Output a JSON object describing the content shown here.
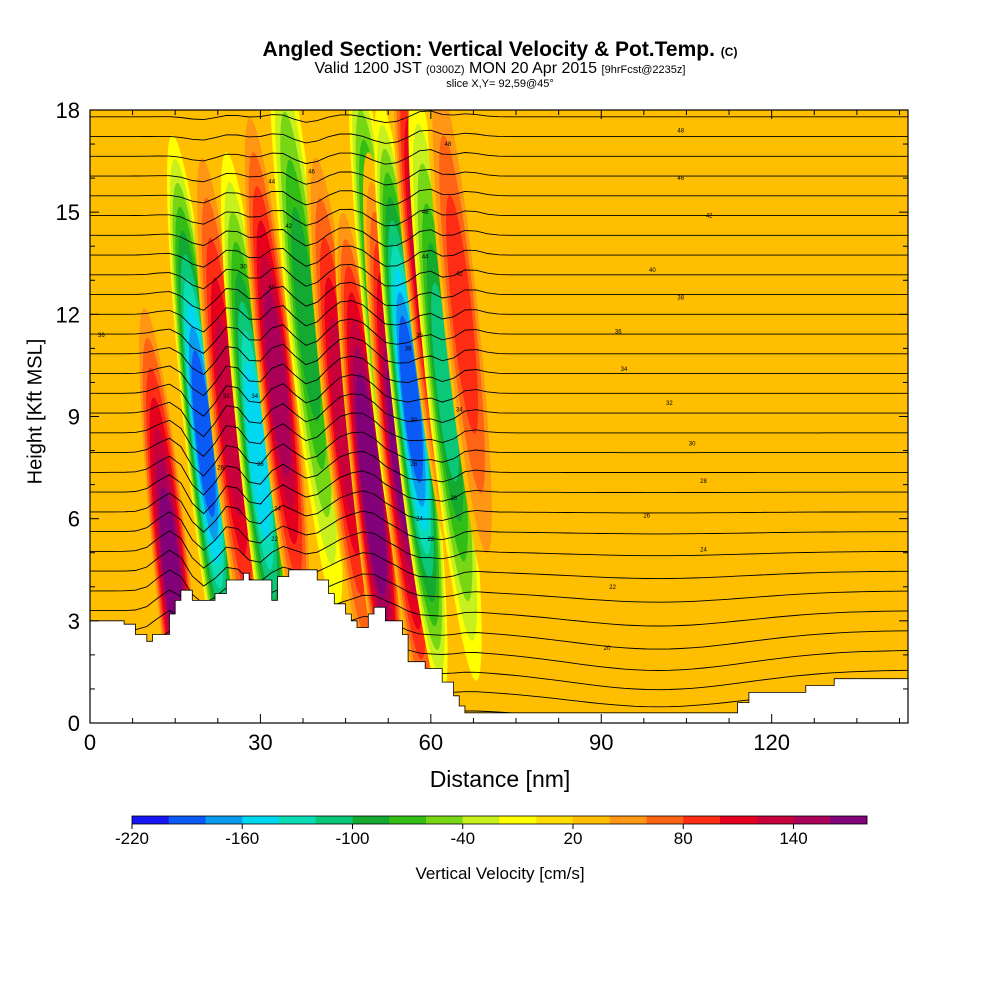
{
  "title": {
    "main": "Angled Section: Vertical Velocity & Pot.Temp.",
    "tag": "(C)",
    "valid_prefix": "Valid 1200 JST",
    "valid_utc": "(0300Z)",
    "valid_date": "MON 20 Apr 2015",
    "forecast": "[9hrFcst@2235z]",
    "slice": "slice X,Y= 92,59@45°"
  },
  "chart_data": {
    "type": "heatmap",
    "xlabel": "Distance [nm]",
    "ylabel": "Height [Kft MSL]",
    "xlim": [
      0,
      144
    ],
    "ylim": [
      0,
      18
    ],
    "x_ticks": [
      0,
      30,
      60,
      90,
      120
    ],
    "y_ticks": [
      0,
      3,
      6,
      9,
      12,
      15,
      18
    ],
    "colorbar": {
      "label": "Vertical Velocity [cm/s]",
      "tick_labels": [
        "-220",
        "-160",
        "-100",
        "-40",
        "20",
        "80",
        "140"
      ],
      "levels": [
        -220,
        -200,
        -180,
        -160,
        -140,
        -120,
        -100,
        -80,
        -60,
        -40,
        -20,
        0,
        20,
        40,
        60,
        80,
        100,
        120,
        140,
        160,
        180
      ],
      "colors": [
        "#1414f5",
        "#0a5af5",
        "#0a9bf0",
        "#00d7f0",
        "#0adcb4",
        "#0ac878",
        "#14aa32",
        "#32be14",
        "#78d714",
        "#c8f01e",
        "#ffff00",
        "#ffdc00",
        "#ffbe00",
        "#ff9614",
        "#ff6414",
        "#ff2d14",
        "#e6001e",
        "#c8003c",
        "#aa005a",
        "#820078"
      ]
    },
    "velocity_bands": [
      {
        "x": 14.5,
        "y": 4.3,
        "value": 160,
        "note": "low-level updraft core"
      },
      {
        "x": 20.0,
        "y": 8.5,
        "value": -200,
        "note": "downdraft core"
      },
      {
        "x": 24.5,
        "y": 9.0,
        "value": 120,
        "note": "updraft"
      },
      {
        "x": 29.5,
        "y": 8.0,
        "value": -150,
        "note": "downdraft"
      },
      {
        "x": 33.0,
        "y": 10.0,
        "value": 130,
        "note": "updraft"
      },
      {
        "x": 38.0,
        "y": 12.0,
        "value": -100,
        "note": "downdraft"
      },
      {
        "x": 44.5,
        "y": 9.0,
        "value": 110,
        "note": "updraft"
      },
      {
        "x": 49.5,
        "y": 7.0,
        "value": 170,
        "note": "updraft core"
      },
      {
        "x": 52.0,
        "y": 11.0,
        "value": -160,
        "note": "downdraft"
      },
      {
        "x": 54.5,
        "y": 8.0,
        "value": 150,
        "note": "updraft core"
      },
      {
        "x": 56.5,
        "y": 9.5,
        "value": -190,
        "note": "downdraft core"
      },
      {
        "x": 59.0,
        "y": 13.0,
        "value": 130,
        "note": "updraft"
      },
      {
        "x": 62.5,
        "y": 10.0,
        "value": -120,
        "note": "downdraft"
      },
      {
        "x": 65.5,
        "y": 12.0,
        "value": 70,
        "note": "updraft"
      }
    ],
    "terrain_height_kft": [
      [
        0,
        3.0
      ],
      [
        6,
        3.0
      ],
      [
        6,
        2.9
      ],
      [
        8,
        2.9
      ],
      [
        8,
        2.6
      ],
      [
        10,
        2.6
      ],
      [
        10,
        2.4
      ],
      [
        11,
        2.4
      ],
      [
        11,
        2.6
      ],
      [
        14,
        2.6
      ],
      [
        14,
        3.2
      ],
      [
        15,
        3.2
      ],
      [
        15,
        3.6
      ],
      [
        16,
        3.6
      ],
      [
        16,
        3.9
      ],
      [
        18,
        3.9
      ],
      [
        18,
        3.6
      ],
      [
        22,
        3.6
      ],
      [
        22,
        3.8
      ],
      [
        24,
        3.8
      ],
      [
        24,
        4.2
      ],
      [
        27,
        4.2
      ],
      [
        27,
        4.4
      ],
      [
        28,
        4.4
      ],
      [
        28,
        4.2
      ],
      [
        32,
        4.2
      ],
      [
        32,
        3.6
      ],
      [
        33,
        3.6
      ],
      [
        33,
        4.3
      ],
      [
        35,
        4.3
      ],
      [
        35,
        4.5
      ],
      [
        40,
        4.5
      ],
      [
        40,
        4.2
      ],
      [
        42,
        4.2
      ],
      [
        42,
        3.8
      ],
      [
        43,
        3.8
      ],
      [
        43,
        3.5
      ],
      [
        45,
        3.5
      ],
      [
        45,
        3.2
      ],
      [
        46,
        3.2
      ],
      [
        46,
        3.0
      ],
      [
        47,
        3.0
      ],
      [
        47,
        2.8
      ],
      [
        49,
        2.8
      ],
      [
        49,
        3.2
      ],
      [
        50,
        3.2
      ],
      [
        50,
        3.4
      ],
      [
        52,
        3.4
      ],
      [
        52,
        3.0
      ],
      [
        55,
        3.0
      ],
      [
        55,
        2.6
      ],
      [
        56,
        2.6
      ],
      [
        56,
        1.8
      ],
      [
        59,
        1.8
      ],
      [
        59,
        1.6
      ],
      [
        62,
        1.6
      ],
      [
        62,
        1.2
      ],
      [
        64,
        1.2
      ],
      [
        64,
        0.8
      ],
      [
        65,
        0.8
      ],
      [
        65,
        0.5
      ],
      [
        66,
        0.5
      ],
      [
        66,
        0.3
      ],
      [
        114,
        0.3
      ],
      [
        114,
        0.6
      ],
      [
        116,
        0.6
      ],
      [
        116,
        0.9
      ],
      [
        126,
        0.9
      ],
      [
        126,
        1.1
      ],
      [
        131,
        1.1
      ],
      [
        131,
        1.3
      ],
      [
        144,
        1.3
      ]
    ],
    "isentrope_labels": [
      {
        "text": "36",
        "x": 2,
        "y": 11.4
      },
      {
        "text": "30",
        "x": 27,
        "y": 13.4
      },
      {
        "text": "32",
        "x": 24,
        "y": 9.6
      },
      {
        "text": "34",
        "x": 29,
        "y": 9.6
      },
      {
        "text": "28",
        "x": 23,
        "y": 7.5
      },
      {
        "text": "26",
        "x": 30,
        "y": 7.6
      },
      {
        "text": "24",
        "x": 33,
        "y": 6.3
      },
      {
        "text": "22",
        "x": 32.5,
        "y": 5.4
      },
      {
        "text": "44",
        "x": 32,
        "y": 15.9
      },
      {
        "text": "46",
        "x": 39,
        "y": 16.2
      },
      {
        "text": "42",
        "x": 35,
        "y": 14.6
      },
      {
        "text": "40",
        "x": 32,
        "y": 12.8
      },
      {
        "text": "48",
        "x": 63,
        "y": 17.0
      },
      {
        "text": "46",
        "x": 59,
        "y": 15.0
      },
      {
        "text": "44",
        "x": 59,
        "y": 13.7
      },
      {
        "text": "42",
        "x": 65,
        "y": 13.2
      },
      {
        "text": "38",
        "x": 56,
        "y": 11.0
      },
      {
        "text": "36",
        "x": 58,
        "y": 11.4
      },
      {
        "text": "34",
        "x": 65,
        "y": 9.2
      },
      {
        "text": "30",
        "x": 57,
        "y": 8.9
      },
      {
        "text": "28",
        "x": 57,
        "y": 7.6
      },
      {
        "text": "26",
        "x": 64,
        "y": 6.6
      },
      {
        "text": "24",
        "x": 58,
        "y": 6.0
      },
      {
        "text": "22",
        "x": 60,
        "y": 5.4
      },
      {
        "text": "48",
        "x": 104,
        "y": 17.4
      },
      {
        "text": "46",
        "x": 104,
        "y": 16.0
      },
      {
        "text": "42",
        "x": 109,
        "y": 14.9
      },
      {
        "text": "40",
        "x": 99,
        "y": 13.3
      },
      {
        "text": "38",
        "x": 104,
        "y": 12.5
      },
      {
        "text": "36",
        "x": 93,
        "y": 11.5
      },
      {
        "text": "34",
        "x": 94,
        "y": 10.4
      },
      {
        "text": "32",
        "x": 102,
        "y": 9.4
      },
      {
        "text": "30",
        "x": 106,
        "y": 8.2
      },
      {
        "text": "28",
        "x": 108,
        "y": 7.1
      },
      {
        "text": "26",
        "x": 98,
        "y": 6.1
      },
      {
        "text": "24",
        "x": 108,
        "y": 5.1
      },
      {
        "text": "22",
        "x": 92,
        "y": 4.0
      },
      {
        "text": "20",
        "x": 91,
        "y": 2.2
      }
    ]
  }
}
